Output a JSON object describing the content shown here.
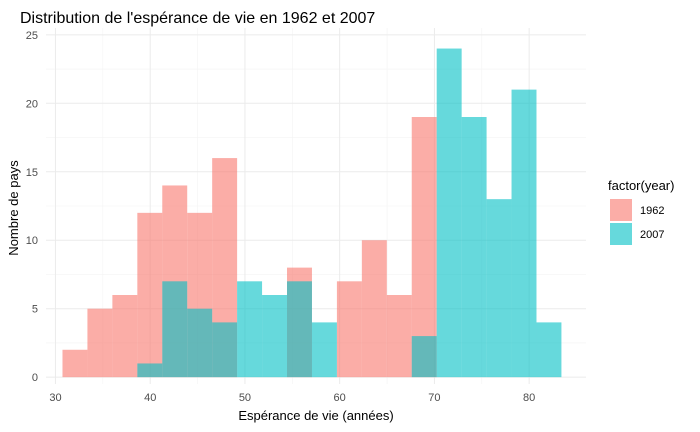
{
  "chart_data": {
    "type": "bar",
    "title": "Distribution de l'espérance de vie en 1962 et 2007",
    "xlabel": "Espérance de vie (années)",
    "ylabel": "Nombre de pays",
    "xlim": [
      29,
      86
    ],
    "ylim": [
      -0.5,
      25.5
    ],
    "xticks": [
      "30",
      "40",
      "50",
      "60",
      "70",
      "80"
    ],
    "yticks": [
      "0",
      "5",
      "10",
      "15",
      "20",
      "25"
    ],
    "xtick_values": [
      30,
      40,
      50,
      60,
      70,
      80
    ],
    "ytick_values": [
      0,
      5,
      10,
      15,
      20,
      25
    ],
    "bin_width": 2.6333,
    "bin_starts": [
      30.74,
      33.373,
      36.007,
      38.64,
      41.273,
      43.907,
      46.54,
      49.173,
      51.807,
      54.44,
      57.073,
      59.707,
      62.34,
      64.973,
      67.607,
      70.24,
      72.873,
      75.507,
      78.14,
      80.773,
      83.407
    ],
    "series": [
      {
        "name": "1962",
        "color": "#F8766D",
        "values": [
          2,
          5,
          6,
          12,
          14,
          12,
          16,
          0,
          0,
          8,
          0,
          7,
          10,
          6,
          19,
          0,
          0,
          0,
          0,
          0,
          0
        ]
      },
      {
        "name": "2007",
        "color": "#00BFC4",
        "values": [
          0,
          0,
          0,
          1,
          7,
          5,
          4,
          7,
          6,
          7,
          4,
          0,
          0,
          0,
          3,
          24,
          19,
          13,
          21,
          4,
          0
        ]
      }
    ],
    "grid": true,
    "legend_title": "factor(year)",
    "legend_position": "right"
  }
}
